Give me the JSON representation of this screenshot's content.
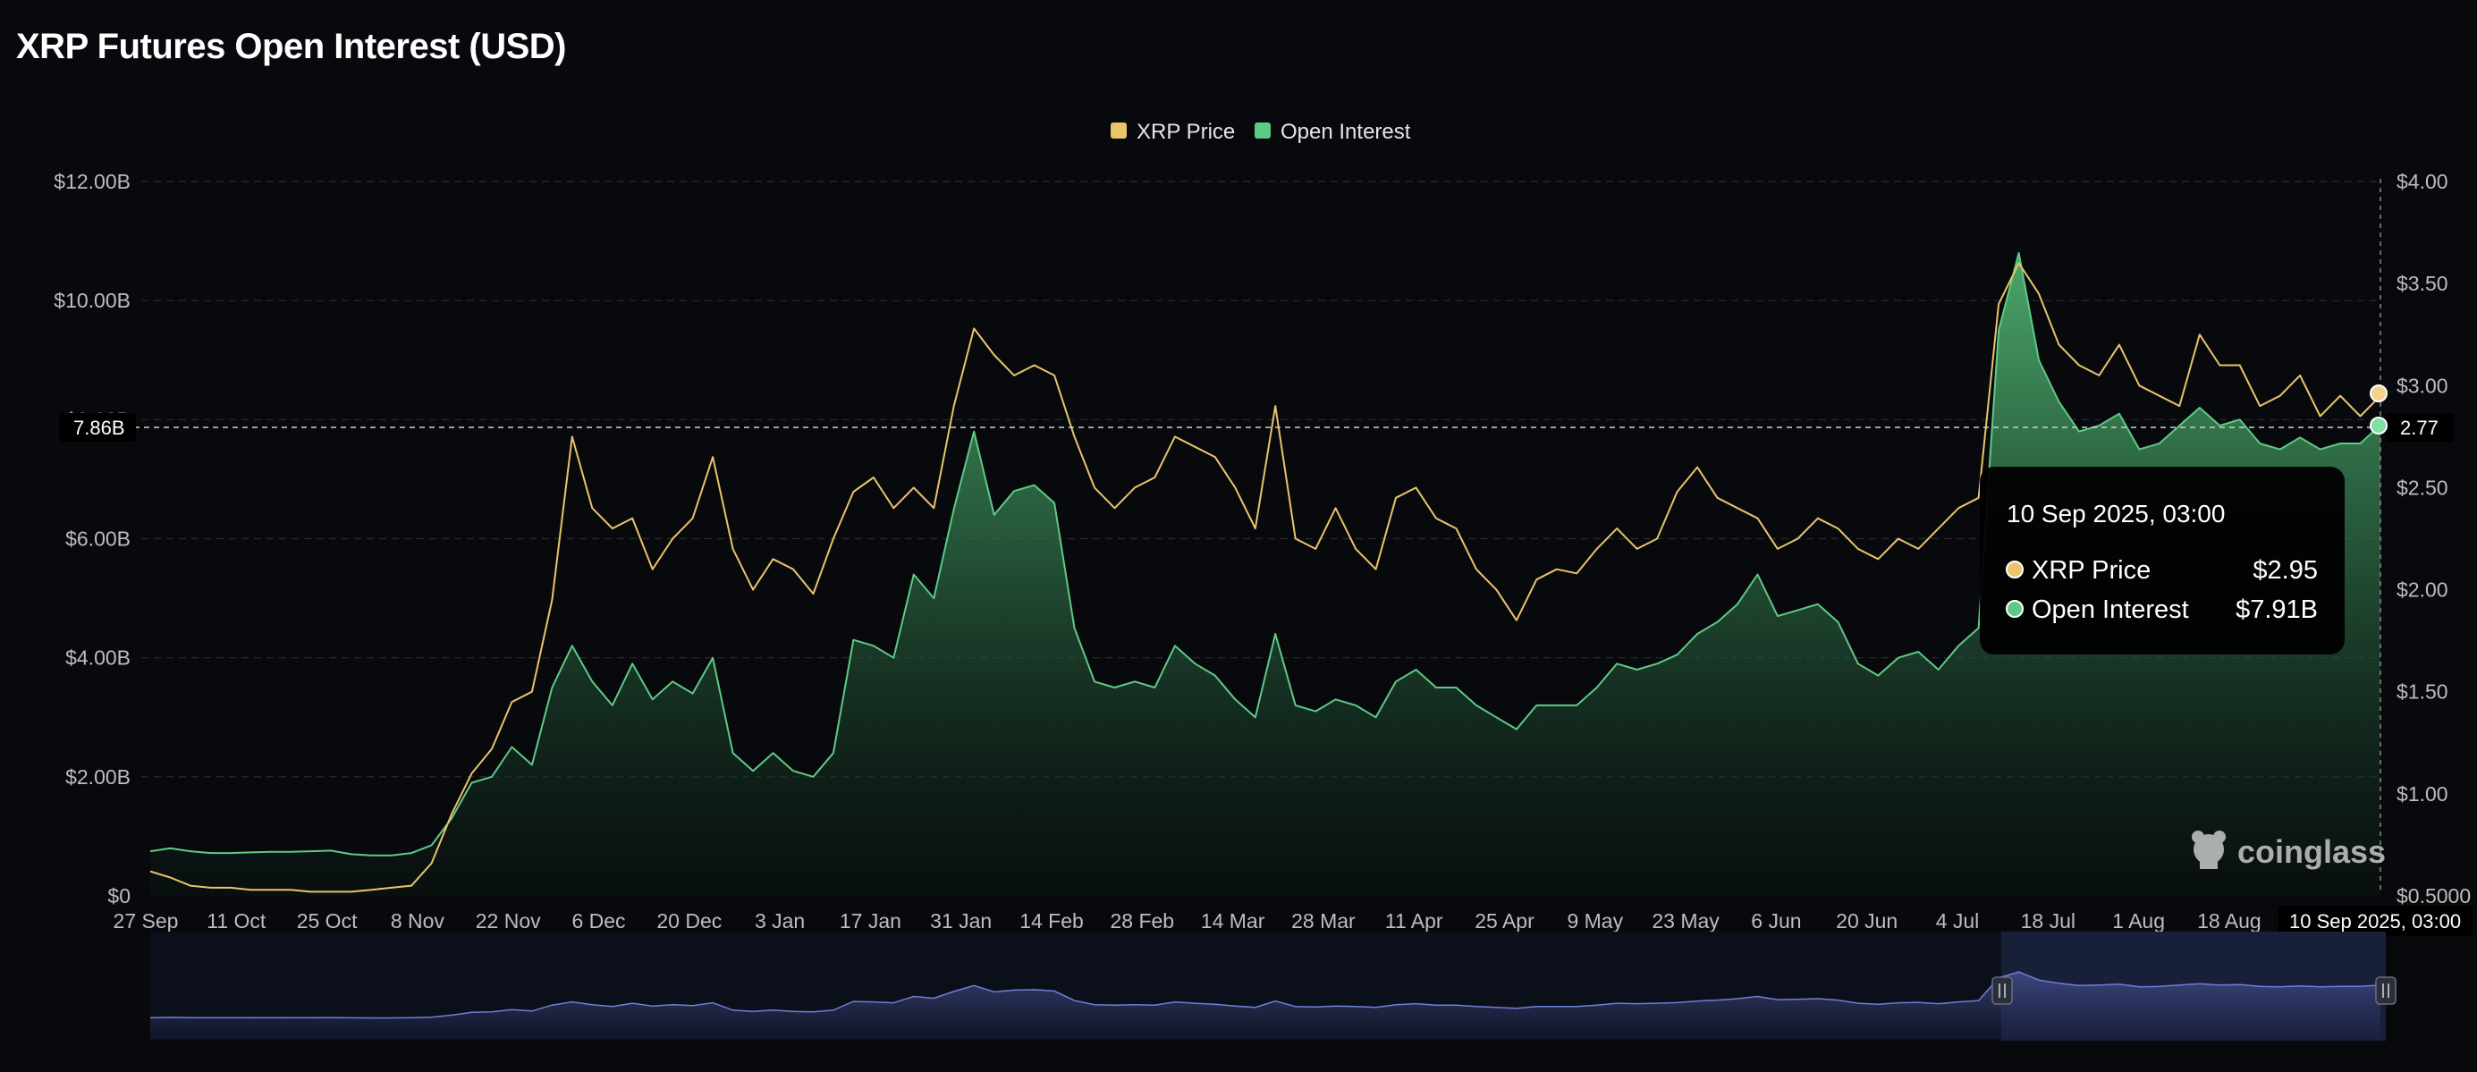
{
  "title": "XRP Futures Open Interest (USD)",
  "legend": [
    {
      "label": "XRP Price",
      "color": "#e9c46a"
    },
    {
      "label": "Open Interest",
      "color": "#5fca84"
    }
  ],
  "crosshair": {
    "left_label": "7.86B",
    "right_label": "2.77",
    "x_label": "10 Sep 2025, 03:00"
  },
  "tooltip": {
    "date": "10 Sep 2025, 03:00",
    "rows": [
      {
        "label": "XRP Price",
        "value": "$2.95"
      },
      {
        "label": "Open Interest",
        "value": "$7.91B"
      }
    ]
  },
  "watermark": "coinglass",
  "chart_data": {
    "type": "area",
    "y_left": {
      "ticks": [
        "$0",
        "$2.00B",
        "$4.00B",
        "$6.00B",
        "$8.00B",
        "$10.00B",
        "$12.00B"
      ],
      "values": [
        0,
        2,
        4,
        6,
        8,
        10,
        12
      ],
      "ylim": [
        0,
        12
      ],
      "unit": "USD billions"
    },
    "y_right": {
      "ticks": [
        "$0.5000",
        "$1.00",
        "$1.50",
        "$2.00",
        "$2.50",
        "$3.00",
        "$3.50",
        "$4.00"
      ],
      "values": [
        0.5,
        1,
        1.5,
        2,
        2.5,
        3,
        3.5,
        4
      ],
      "ylim": [
        0.5,
        4.0
      ],
      "unit": "USD"
    },
    "x_ticks": [
      "27 Sep",
      "11 Oct",
      "25 Oct",
      "8 Nov",
      "22 Nov",
      "6 Dec",
      "20 Dec",
      "3 Jan",
      "17 Jan",
      "31 Jan",
      "14 Feb",
      "28 Feb",
      "14 Mar",
      "28 Mar",
      "11 Apr",
      "25 Apr",
      "9 May",
      "23 May",
      "6 Jun",
      "20 Jun",
      "4 Jul",
      "18 Jul",
      "1 Aug",
      "18 Aug"
    ],
    "grid": true,
    "legend_position": "top-center",
    "series": [
      {
        "name": "XRP Price",
        "axis": "right",
        "color": "#e9c46a",
        "values": [
          0.62,
          0.59,
          0.55,
          0.54,
          0.54,
          0.53,
          0.53,
          0.53,
          0.52,
          0.52,
          0.52,
          0.53,
          0.54,
          0.55,
          0.66,
          0.9,
          1.1,
          1.22,
          1.45,
          1.5,
          1.95,
          2.75,
          2.4,
          2.3,
          2.35,
          2.1,
          2.25,
          2.35,
          2.65,
          2.2,
          2.0,
          2.15,
          2.1,
          1.98,
          2.25,
          2.48,
          2.55,
          2.4,
          2.5,
          2.4,
          2.9,
          3.28,
          3.15,
          3.05,
          3.1,
          3.05,
          2.75,
          2.5,
          2.4,
          2.5,
          2.55,
          2.75,
          2.7,
          2.65,
          2.5,
          2.3,
          2.9,
          2.25,
          2.2,
          2.4,
          2.2,
          2.1,
          2.45,
          2.5,
          2.35,
          2.3,
          2.1,
          2.0,
          1.85,
          2.05,
          2.1,
          2.08,
          2.2,
          2.3,
          2.2,
          2.25,
          2.48,
          2.6,
          2.45,
          2.4,
          2.35,
          2.2,
          2.25,
          2.35,
          2.3,
          2.2,
          2.15,
          2.25,
          2.2,
          2.3,
          2.4,
          2.45,
          3.4,
          3.6,
          3.45,
          3.2,
          3.1,
          3.05,
          3.2,
          3.0,
          2.95,
          2.9,
          3.25,
          3.1,
          3.1,
          2.9,
          2.95,
          3.05,
          2.85,
          2.95,
          2.85,
          2.95
        ]
      },
      {
        "name": "Open Interest",
        "axis": "left",
        "color": "#5fca84",
        "values": [
          0.75,
          0.8,
          0.75,
          0.72,
          0.72,
          0.73,
          0.74,
          0.74,
          0.75,
          0.76,
          0.7,
          0.68,
          0.68,
          0.72,
          0.85,
          1.3,
          1.9,
          2.0,
          2.5,
          2.2,
          3.5,
          4.2,
          3.6,
          3.2,
          3.9,
          3.3,
          3.6,
          3.4,
          4.0,
          2.4,
          2.1,
          2.4,
          2.1,
          2.0,
          2.4,
          4.3,
          4.2,
          4.0,
          5.4,
          5.0,
          6.5,
          7.8,
          6.4,
          6.8,
          6.9,
          6.6,
          4.5,
          3.6,
          3.5,
          3.6,
          3.5,
          4.2,
          3.9,
          3.7,
          3.3,
          3.0,
          4.4,
          3.2,
          3.1,
          3.3,
          3.2,
          3.0,
          3.6,
          3.8,
          3.5,
          3.5,
          3.2,
          3.0,
          2.8,
          3.2,
          3.2,
          3.2,
          3.5,
          3.9,
          3.8,
          3.9,
          4.05,
          4.4,
          4.6,
          4.9,
          5.4,
          4.7,
          4.8,
          4.9,
          4.6,
          3.9,
          3.7,
          4.0,
          4.1,
          3.8,
          4.2,
          4.5,
          9.5,
          10.8,
          9.0,
          8.3,
          7.8,
          7.9,
          8.1,
          7.5,
          7.6,
          7.9,
          8.2,
          7.9,
          8.0,
          7.6,
          7.5,
          7.7,
          7.5,
          7.6,
          7.6,
          7.91
        ]
      }
    ]
  }
}
